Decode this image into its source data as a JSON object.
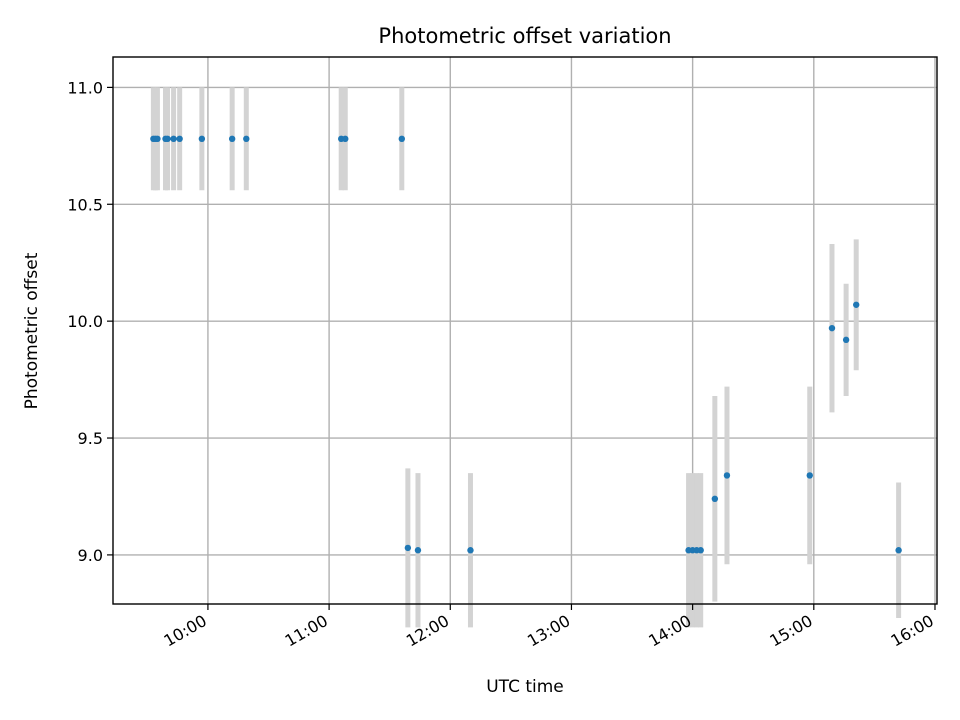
{
  "chart_data": {
    "type": "scatter",
    "title": "Photometric offset variation",
    "xlabel": "UTC time",
    "ylabel": "Photometric offset",
    "x_ticks": [
      "10:00",
      "11:00",
      "12:00",
      "13:00",
      "14:00",
      "15:00",
      "16:00"
    ],
    "y_ticks": [
      "9.0",
      "9.5",
      "10.0",
      "10.5",
      "11.0"
    ],
    "xlim": [
      "09:13",
      "16:01"
    ],
    "ylim": [
      8.79,
      11.13
    ],
    "grid": true,
    "colors": {
      "marker": "#1f77b4",
      "errorbar": "#d3d3d3"
    },
    "series": [
      {
        "points": [
          {
            "x": "09:33",
            "y": 10.78,
            "yerr": 0.22
          },
          {
            "x": "09:34",
            "y": 10.78,
            "yerr": 0.22
          },
          {
            "x": "09:35",
            "y": 10.78,
            "yerr": 0.22
          },
          {
            "x": "09:39",
            "y": 10.78,
            "yerr": 0.22
          },
          {
            "x": "09:40",
            "y": 10.78,
            "yerr": 0.22
          },
          {
            "x": "09:43",
            "y": 10.78,
            "yerr": 0.22
          },
          {
            "x": "09:46",
            "y": 10.78,
            "yerr": 0.22
          },
          {
            "x": "09:57",
            "y": 10.78,
            "yerr": 0.22
          },
          {
            "x": "10:12",
            "y": 10.78,
            "yerr": 0.22
          },
          {
            "x": "10:19",
            "y": 10.78,
            "yerr": 0.22
          },
          {
            "x": "11:06",
            "y": 10.78,
            "yerr": 0.22
          },
          {
            "x": "11:08",
            "y": 10.78,
            "yerr": 0.22
          },
          {
            "x": "11:36",
            "y": 10.78,
            "yerr": 0.22
          },
          {
            "x": "11:39",
            "y": 9.03,
            "yerr": 0.34
          },
          {
            "x": "11:44",
            "y": 9.02,
            "yerr": 0.33
          },
          {
            "x": "12:10",
            "y": 9.02,
            "yerr": 0.33
          },
          {
            "x": "13:58",
            "y": 9.02,
            "yerr": 0.33
          },
          {
            "x": "14:00",
            "y": 9.02,
            "yerr": 0.33
          },
          {
            "x": "14:02",
            "y": 9.02,
            "yerr": 0.33
          },
          {
            "x": "14:04",
            "y": 9.02,
            "yerr": 0.33
          },
          {
            "x": "14:11",
            "y": 9.24,
            "yerr": 0.44
          },
          {
            "x": "14:17",
            "y": 9.34,
            "yerr": 0.38
          },
          {
            "x": "14:58",
            "y": 9.34,
            "yerr": 0.38
          },
          {
            "x": "15:09",
            "y": 9.97,
            "yerr": 0.36
          },
          {
            "x": "15:16",
            "y": 9.92,
            "yerr": 0.24
          },
          {
            "x": "15:21",
            "y": 10.07,
            "yerr": 0.28
          },
          {
            "x": "15:42",
            "y": 9.02,
            "yerr": 0.29
          }
        ]
      }
    ]
  }
}
